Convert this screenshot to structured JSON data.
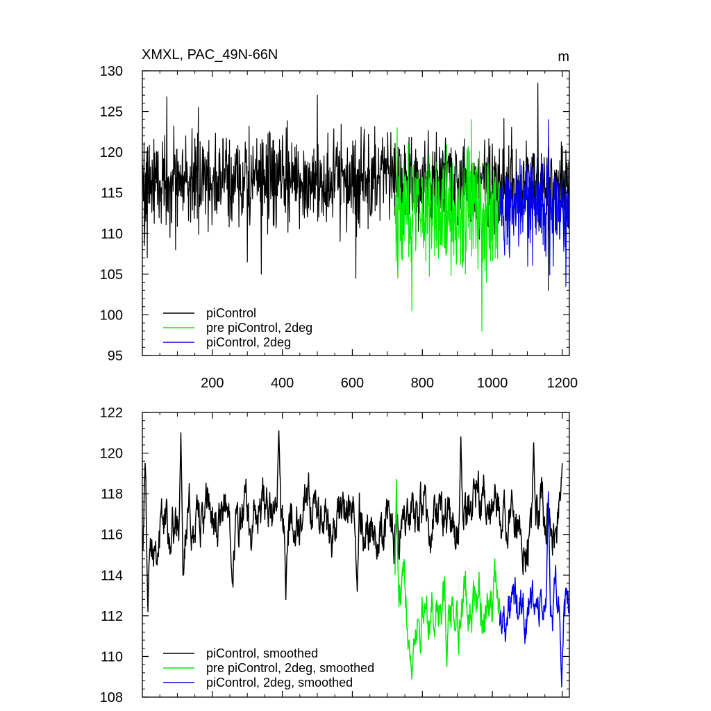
{
  "chart_data": [
    {
      "type": "line",
      "title": "XMXL, PAC_49N-66N",
      "units": "m",
      "xlim": [
        0,
        1220
      ],
      "ylim": [
        95,
        130
      ],
      "xticks": [
        200,
        400,
        600,
        800,
        1000,
        1200
      ],
      "yticks": [
        95,
        100,
        105,
        110,
        115,
        120,
        125,
        130
      ],
      "grid": false,
      "legend_position": "bottom-left",
      "series": [
        {
          "name": "piControl",
          "color": "#000000",
          "x_start": 1,
          "x_end": 1220,
          "mean": 116.5,
          "amplitude": 4.0,
          "highlights": [
            [
              6,
              108.5
            ],
            [
              14,
              107
            ],
            [
              70,
              126.8
            ],
            [
              95,
              108
            ],
            [
              160,
              125.5
            ],
            [
              300,
              106.5
            ],
            [
              340,
              105
            ],
            [
              500,
              127
            ],
            [
              610,
              104.5
            ],
            [
              1130,
              128.5
            ],
            [
              1160,
              103
            ]
          ]
        },
        {
          "name": "pre piControl, 2deg",
          "color": "#00ee00",
          "x_start": 722,
          "x_end": 1021,
          "mean": 113.0,
          "amplitude": 5.0,
          "highlights": [
            [
              728,
              123
            ],
            [
              730,
              104.5
            ],
            [
              770,
              100.5
            ],
            [
              940,
              124
            ],
            [
              970,
              98
            ]
          ]
        },
        {
          "name": "piControl, 2deg",
          "color": "#0000ee",
          "x_start": 1021,
          "x_end": 1220,
          "mean": 113.0,
          "amplitude": 4.0,
          "highlights": [
            [
              1160,
              124
            ],
            [
              1210,
              103.5
            ]
          ]
        }
      ]
    },
    {
      "type": "line",
      "title": "",
      "xlim": [
        0,
        1220
      ],
      "ylim": [
        108,
        122
      ],
      "xticks": [
        200,
        400,
        600,
        800,
        1000,
        1200
      ],
      "yticks": [
        108,
        110,
        112,
        114,
        116,
        118,
        120,
        122
      ],
      "grid": false,
      "legend_position": "bottom-left",
      "series": [
        {
          "name": "piControl, smoothed",
          "color": "#000000",
          "x_start": 1,
          "x_end": 1200,
          "mean": 116.6,
          "amplitude": 1.6,
          "highlights": [
            [
              8,
              119.5
            ],
            [
              16,
              112.2
            ],
            [
              110,
              121
            ],
            [
              390,
              121.1
            ],
            [
              410,
              112.8
            ],
            [
              614,
              113.2
            ],
            [
              910,
              120.8
            ],
            [
              1118,
              120.5
            ],
            [
              1200,
              119.5
            ]
          ]
        },
        {
          "name": "pre piControl, 2deg, smoothed",
          "color": "#00ee00",
          "x_start": 722,
          "x_end": 1021,
          "mean": 112.5,
          "amplitude": 1.6,
          "highlights": [
            [
              726,
              118.7
            ],
            [
              770,
              108.9
            ],
            [
              870,
              109.5
            ]
          ]
        },
        {
          "name": "piControl, 2deg, smoothed",
          "color": "#0000ee",
          "x_start": 1021,
          "x_end": 1220,
          "mean": 112.2,
          "amplitude": 1.4,
          "highlights": [
            [
              1160,
              118.1
            ],
            [
              1198,
              108.5
            ]
          ]
        }
      ]
    }
  ]
}
